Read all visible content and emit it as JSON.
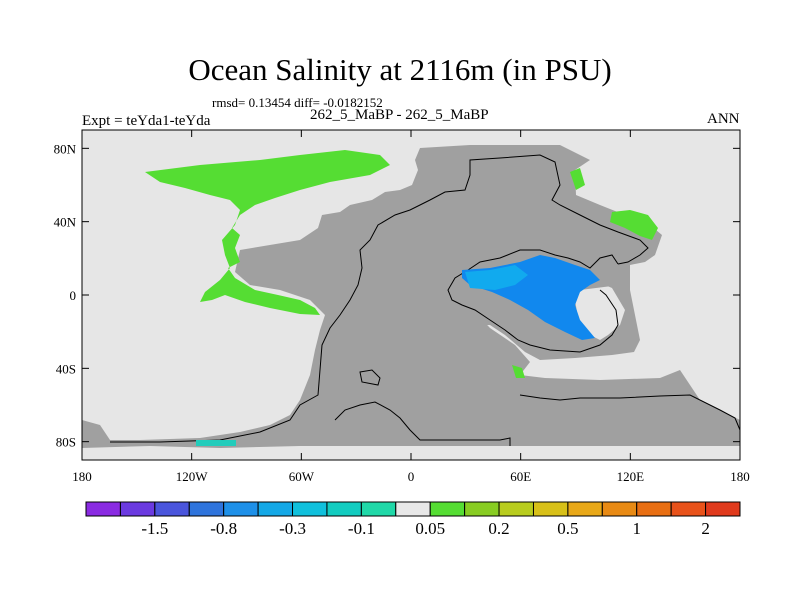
{
  "figure": {
    "title": "Ocean Salinity at 2116m (in PSU)",
    "stats": "rmsd= 0.13454  diff= -0.0182152",
    "left_label": "Expt = teYda1-teYda",
    "center_label": "262_5_MaBP - 262_5_MaBP",
    "right_label": "ANN"
  },
  "map": {
    "projection": "cylindrical equidistant",
    "lon_range": [
      -180,
      180
    ],
    "lat_range": [
      -90,
      90
    ],
    "lat_ticks": [
      {
        "value": 80,
        "label": "80N"
      },
      {
        "value": 40,
        "label": "40N"
      },
      {
        "value": 0,
        "label": "0"
      },
      {
        "value": -40,
        "label": "40S"
      },
      {
        "value": -80,
        "label": "80S"
      }
    ],
    "lon_ticks": [
      {
        "value": -180,
        "label": "180"
      },
      {
        "value": -120,
        "label": "120W"
      },
      {
        "value": -60,
        "label": "60W"
      },
      {
        "value": 0,
        "label": "0"
      },
      {
        "value": 60,
        "label": "60E"
      },
      {
        "value": 120,
        "label": "120E"
      },
      {
        "value": 180,
        "label": "180"
      }
    ],
    "colors": {
      "land": "#a0a0a0",
      "ocean_neutral": "#e6e6e6",
      "positive_anomaly": "#55dd33",
      "negative_anomaly": "#1188ee",
      "negative_anomaly_light": "#11aaee",
      "teal_anomaly": "#22ccbb"
    }
  },
  "colorbar": {
    "colors": [
      "#8a2be2",
      "#6b3ae0",
      "#4a55dc",
      "#2f74dc",
      "#1e90e8",
      "#14a8e6",
      "#10c0dc",
      "#12ccc0",
      "#20d8a8",
      "#e8e8e8",
      "#55dd33",
      "#88cc22",
      "#b8cc1e",
      "#d8c018",
      "#e8a818",
      "#e88a14",
      "#e86e12",
      "#e8521a",
      "#e03a1c"
    ],
    "labels": [
      "-1.5",
      "-0.8",
      "-0.3",
      "-0.1",
      "0.05",
      "0.2",
      "0.5",
      "1",
      "2"
    ]
  }
}
